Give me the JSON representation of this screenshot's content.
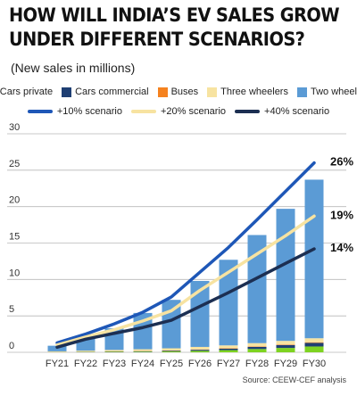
{
  "title_lines": [
    "HOW WILL INDIA’S EV SALES GROW",
    "UNDER DIFFERENT SCENARIOS?"
  ],
  "subtitle": "(New sales in millions)",
  "source": "Source: CEEW-CEF analysis",
  "legend": {
    "bars": [
      {
        "label": "Cars private",
        "color": "#7ed321"
      },
      {
        "label": "Cars commercial",
        "color": "#1f3f73"
      },
      {
        "label": "Buses",
        "color": "#f5821f"
      },
      {
        "label": "Three wheelers",
        "color": "#f7e3a1"
      },
      {
        "label": "Two wheelers",
        "color": "#5b9bd5"
      }
    ],
    "lines": [
      {
        "label": "+10% scenario",
        "color": "#1e57b7"
      },
      {
        "label": "+20% scenario",
        "color": "#f7e3a1"
      },
      {
        "label": "+40% scenario",
        "color": "#1c2f52"
      }
    ]
  },
  "chart_data": {
    "type": "bar",
    "stacked": true,
    "categories": [
      "FY21",
      "FY22",
      "FY23",
      "FY24",
      "FY25",
      "FY26",
      "FY27",
      "FY28",
      "FY29",
      "FY30"
    ],
    "ylim": [
      0,
      30
    ],
    "yticks": [
      0,
      5,
      10,
      15,
      20,
      25,
      30
    ],
    "grid": true,
    "series": [
      {
        "name": "Cars private",
        "color": "#7ed321",
        "values": [
          0.02,
          0.04,
          0.06,
          0.08,
          0.12,
          0.2,
          0.3,
          0.45,
          0.6,
          0.8
        ]
      },
      {
        "name": "Cars commercial",
        "color": "#1f3f73",
        "values": [
          0.01,
          0.03,
          0.05,
          0.07,
          0.1,
          0.15,
          0.2,
          0.3,
          0.4,
          0.5
        ]
      },
      {
        "name": "Buses",
        "color": "#f5821f",
        "values": [
          0.005,
          0.01,
          0.015,
          0.02,
          0.03,
          0.04,
          0.05,
          0.06,
          0.07,
          0.08
        ]
      },
      {
        "name": "Three wheelers",
        "color": "#f7e3a1",
        "values": [
          0.1,
          0.15,
          0.2,
          0.25,
          0.3,
          0.35,
          0.4,
          0.45,
          0.5,
          0.55
        ]
      },
      {
        "name": "Two wheelers",
        "color": "#5b9bd5",
        "values": [
          0.765,
          1.77,
          2.97,
          4.98,
          6.65,
          9.06,
          11.75,
          14.84,
          18.13,
          21.77
        ]
      }
    ],
    "lines": [
      {
        "name": "+10% scenario",
        "color": "#1e57b7",
        "values": [
          1.3,
          2.5,
          3.9,
          5.5,
          7.6,
          11.0,
          14.4,
          18.2,
          22.1,
          26.0
        ],
        "end_label": "26%"
      },
      {
        "name": "+20% scenario",
        "color": "#f7e3a1",
        "values": [
          1.0,
          2.1,
          3.1,
          4.3,
          5.7,
          8.5,
          11.0,
          13.5,
          16.0,
          18.7
        ],
        "end_label": "19%"
      },
      {
        "name": "+40% scenario",
        "color": "#1c2f52",
        "values": [
          0.7,
          1.8,
          2.6,
          3.4,
          4.4,
          6.3,
          8.2,
          10.2,
          12.2,
          14.2
        ],
        "end_label": "14%"
      }
    ]
  }
}
